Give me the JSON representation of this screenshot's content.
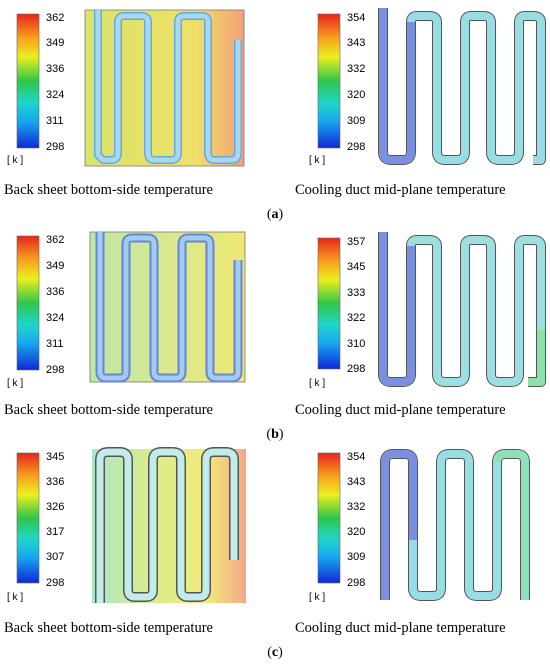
{
  "rows": [
    {
      "label": "a",
      "panels": [
        {
          "caption": "Back sheet bottom-side temperature",
          "unit": "[ k ]",
          "ticks": [
            "362",
            "349",
            "336",
            "324",
            "311",
            "298"
          ],
          "plate_color": "#e2e86a",
          "duct_color": "#9ec7f0"
        },
        {
          "caption": "Cooling duct mid-plane temperature",
          "unit": "[ k ]",
          "ticks": [
            "354",
            "343",
            "332",
            "320",
            "309",
            "298"
          ],
          "plate_color": "none",
          "duct_color": "#97dde0"
        }
      ]
    },
    {
      "label": "b",
      "panels": [
        {
          "caption": "Back sheet bottom-side temperature",
          "unit": "[ k ]",
          "ticks": [
            "362",
            "349",
            "336",
            "324",
            "311",
            "298"
          ],
          "plate_color": "#d8ea7a",
          "duct_color": "#9ec7f0"
        },
        {
          "caption": "Cooling duct mid-plane temperature",
          "unit": "[ k ]",
          "ticks": [
            "357",
            "345",
            "333",
            "322",
            "310",
            "298"
          ],
          "plate_color": "none",
          "duct_color": "#97dde0"
        }
      ]
    },
    {
      "label": "c",
      "panels": [
        {
          "caption": "Back sheet bottom-side temperature",
          "unit": "[ k ]",
          "ticks": [
            "345",
            "336",
            "326",
            "317",
            "307",
            "298"
          ],
          "plate_color": "#ecec82",
          "duct_color": "#b3e3ec"
        },
        {
          "caption": "Cooling duct mid-plane temperature",
          "unit": "[ k ]",
          "ticks": [
            "354",
            "343",
            "332",
            "320",
            "309",
            "298"
          ],
          "plate_color": "none",
          "duct_color": "#97dde0"
        }
      ]
    }
  ],
  "colormap": [
    "#d7191c",
    "#f46d43",
    "#fdae61",
    "#ffff00",
    "#a6d96a",
    "#1a9850",
    "#00c0c0",
    "#00bfff",
    "#0000ff"
  ]
}
